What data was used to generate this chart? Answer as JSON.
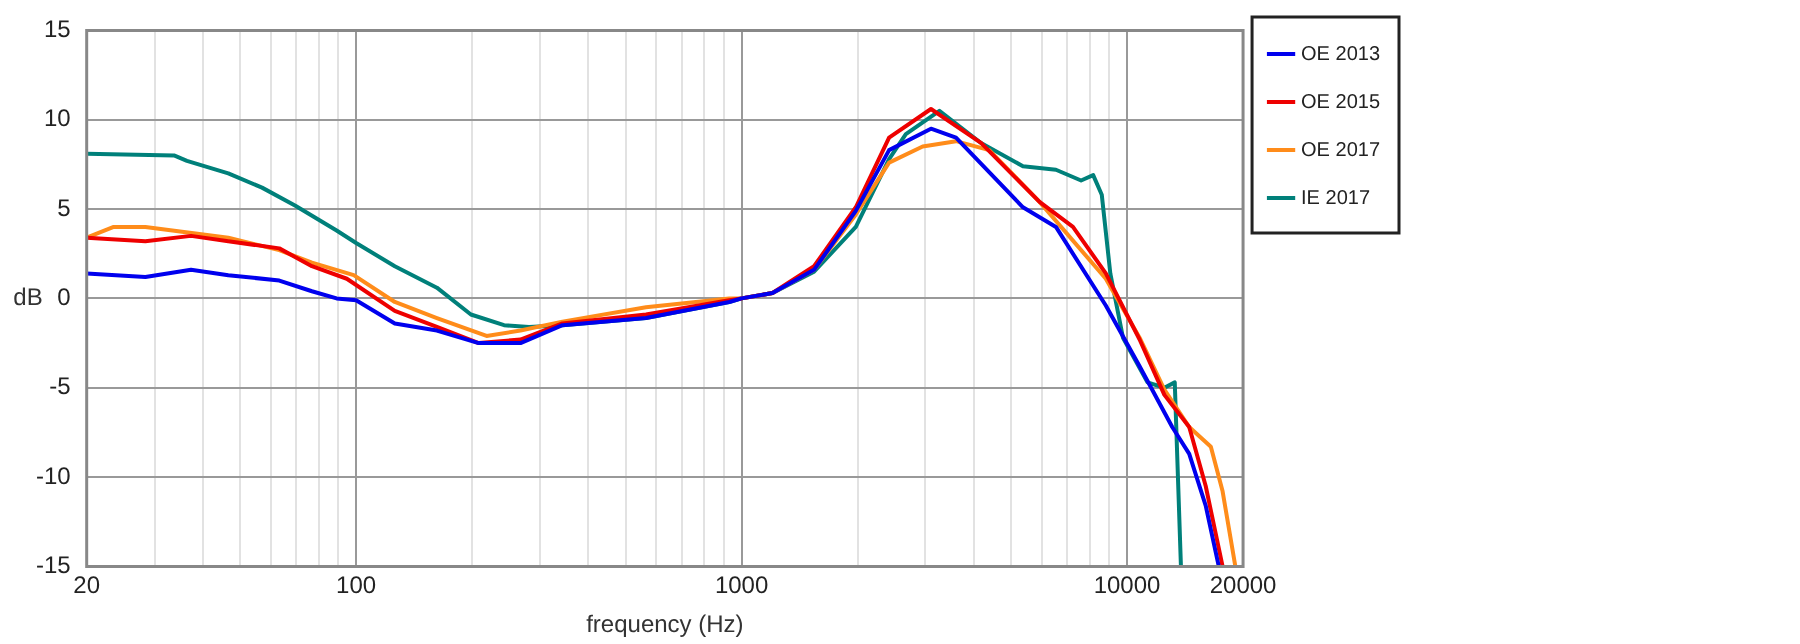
{
  "chart_data": {
    "type": "line",
    "xlabel": "frequency (Hz)",
    "ylabel": "dB",
    "log": "x",
    "grid": true,
    "legend": "top right",
    "line_style": "solid",
    "marker": "none",
    "xlim": [
      20,
      20000
    ],
    "ylim": [
      -15,
      15
    ],
    "xticks": [
      20,
      {
        "value": 30,
        "label": null
      },
      {
        "value": 40,
        "label": null
      },
      {
        "value": 50,
        "label": null
      },
      {
        "value": 60,
        "label": null
      },
      {
        "value": 70,
        "label": null
      },
      {
        "value": 80,
        "label": null
      },
      {
        "value": 90,
        "label": null
      },
      100,
      {
        "value": 200,
        "label": null
      },
      {
        "value": 300,
        "label": null
      },
      {
        "value": 400,
        "label": null
      },
      {
        "value": 500,
        "label": null
      },
      {
        "value": 600,
        "label": null
      },
      {
        "value": 700,
        "label": null
      },
      {
        "value": 800,
        "label": null
      },
      {
        "value": 900,
        "label": null
      },
      1000,
      {
        "value": 2000,
        "label": null
      },
      {
        "value": 3000,
        "label": null
      },
      {
        "value": 4000,
        "label": null
      },
      {
        "value": 5000,
        "label": null
      },
      {
        "value": 6000,
        "label": null
      },
      {
        "value": 7000,
        "label": null
      },
      {
        "value": 8000,
        "label": null
      },
      {
        "value": 9000,
        "label": null
      },
      10000,
      20000
    ],
    "yticks": [
      -15,
      -10,
      -5,
      0,
      5,
      10,
      15
    ],
    "series": [
      {
        "name": "OE 2013",
        "color": "#0000ee",
        "x": [
          20,
          28.4,
          37.3,
          46.6,
          63.2,
          76.8,
          89,
          100,
          126,
          162,
          208,
          267,
          343,
          565,
          929,
          1000,
          1203,
          1542,
          1979,
          2414,
          3100,
          3600,
          5370,
          6540,
          8810,
          10780,
          13100,
          14500,
          16000,
          17300
        ],
        "values": [
          1.4,
          1.2,
          1.6,
          1.3,
          1.0,
          0.4,
          0,
          -0.1,
          -1.4,
          -1.8,
          -2.5,
          -2.5,
          -1.5,
          -1.1,
          -0.2,
          0,
          0.3,
          1.6,
          4.9,
          8.3,
          9.5,
          9.0,
          5.1,
          4.0,
          -0.4,
          -3.8,
          -7.2,
          -8.7,
          -11.6,
          -15
        ]
      },
      {
        "name": "OE 2015",
        "color": "#ee0000",
        "x": [
          20,
          28.4,
          37.3,
          46.6,
          63.2,
          76.8,
          94.6,
          126,
          162,
          208,
          267,
          343,
          565,
          929,
          1000,
          1203,
          1542,
          1979,
          2414,
          3100,
          4180,
          5930,
          7240,
          8810,
          10780,
          12500,
          14500,
          16000,
          17700
        ],
        "values": [
          3.4,
          3.2,
          3.5,
          3.2,
          2.8,
          1.8,
          1.1,
          -0.7,
          -1.6,
          -2.5,
          -2.3,
          -1.4,
          -0.9,
          -0.1,
          0,
          0.3,
          1.8,
          5.1,
          9.0,
          10.6,
          8.7,
          5.4,
          4.0,
          1.4,
          -2.3,
          -5.4,
          -7.2,
          -10.5,
          -15
        ]
      },
      {
        "name": "OE 2017",
        "color": "#ff8c1a",
        "x": [
          20,
          23.5,
          28.4,
          46.6,
          63.2,
          76.8,
          98.6,
          126,
          162,
          218,
          267,
          343,
          565,
          929,
          1000,
          1203,
          1542,
          1979,
          2414,
          2950,
          3600,
          4390,
          5930,
          8810,
          10780,
          12500,
          14500,
          16500,
          17700,
          19100
        ],
        "values": [
          3.4,
          4.0,
          4.0,
          3.4,
          2.7,
          2.0,
          1.3,
          -0.2,
          -1.1,
          -2.1,
          -1.8,
          -1.3,
          -0.5,
          0,
          0,
          0.3,
          1.6,
          4.7,
          7.6,
          8.5,
          8.8,
          8.3,
          5.4,
          1.1,
          -2.2,
          -5.1,
          -7.2,
          -8.3,
          -10.8,
          -15
        ]
      },
      {
        "name": "IE 2017",
        "color": "#00807a",
        "x": [
          20,
          33.7,
          36.4,
          46.6,
          57,
          69.4,
          89,
          100,
          126,
          162,
          198.5,
          242,
          281,
          343,
          565,
          929,
          1000,
          1203,
          1542,
          1979,
          2414,
          2668,
          3260,
          4180,
          5370,
          6540,
          7600,
          8170,
          8600,
          9050,
          9760,
          11300,
          12500,
          13300,
          13800
        ],
        "values": [
          8.1,
          8.0,
          7.7,
          7.0,
          6.2,
          5.2,
          3.8,
          3.1,
          1.8,
          0.6,
          -0.9,
          -1.5,
          -1.6,
          -1.5,
          -1.1,
          -0.2,
          0,
          0.3,
          1.5,
          4.0,
          7.8,
          9.2,
          10.5,
          8.7,
          7.4,
          7.2,
          6.6,
          6.9,
          5.8,
          1.4,
          -2.2,
          -4.7,
          -5.0,
          -4.7,
          -15
        ]
      }
    ]
  }
}
